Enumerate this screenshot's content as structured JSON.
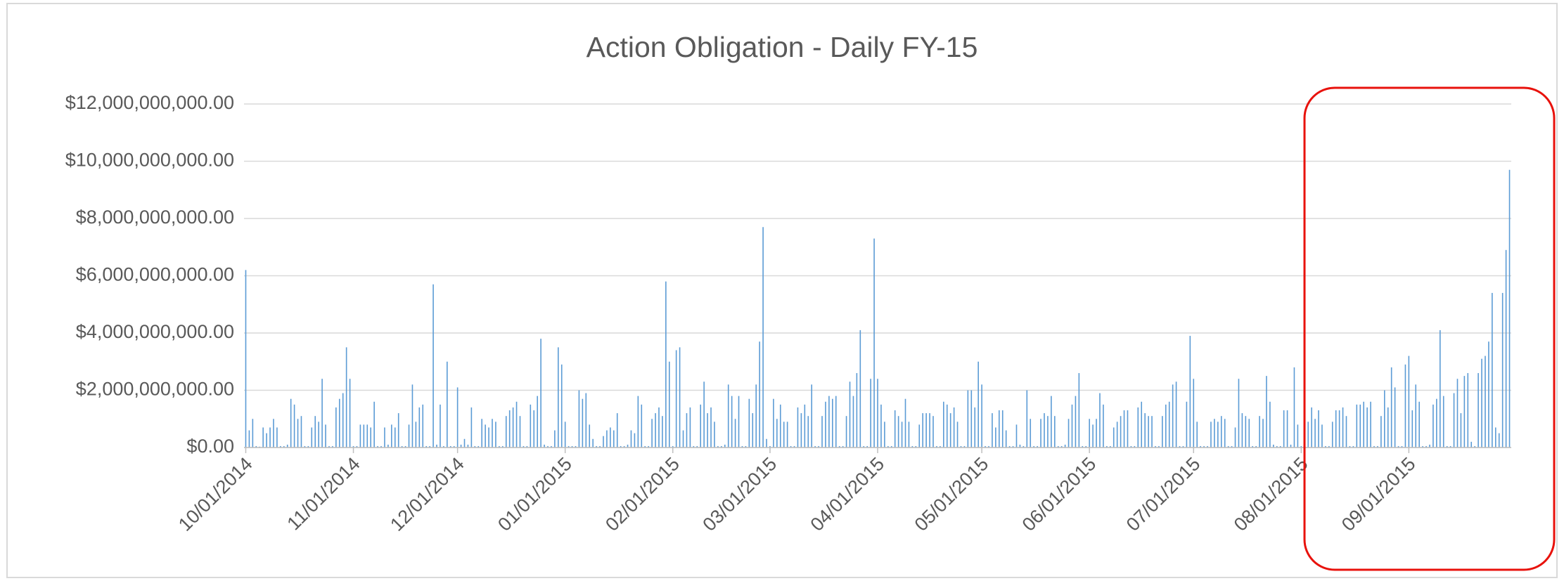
{
  "chart_data": {
    "type": "bar",
    "title": "Action Obligation - Daily FY-15",
    "color": "#5b9bd5",
    "grid": true,
    "categories": [
      "10/01/2014",
      null,
      null,
      null,
      null,
      null,
      null,
      null,
      null,
      null,
      null,
      null,
      null,
      null,
      null,
      null,
      null,
      null,
      null,
      null,
      null,
      null,
      null,
      null,
      null,
      null,
      null,
      null,
      null,
      null,
      null,
      "11/01/2014",
      null,
      null,
      null,
      null,
      null,
      null,
      null,
      null,
      null,
      null,
      null,
      null,
      null,
      null,
      null,
      null,
      null,
      null,
      null,
      null,
      null,
      null,
      null,
      null,
      null,
      null,
      null,
      null,
      null,
      "12/01/2014",
      null,
      null,
      null,
      null,
      null,
      null,
      null,
      null,
      null,
      null,
      null,
      null,
      null,
      null,
      null,
      null,
      null,
      null,
      null,
      null,
      null,
      null,
      null,
      null,
      null,
      null,
      null,
      null,
      null,
      null,
      "01/01/2015",
      null,
      null,
      null,
      null,
      null,
      null,
      null,
      null,
      null,
      null,
      null,
      null,
      null,
      null,
      null,
      null,
      null,
      null,
      null,
      null,
      null,
      null,
      null,
      null,
      null,
      null,
      null,
      null,
      null,
      null,
      "02/01/2015",
      null,
      null,
      null,
      null,
      null,
      null,
      null,
      null,
      null,
      null,
      null,
      null,
      null,
      null,
      null,
      null,
      null,
      null,
      null,
      null,
      null,
      null,
      null,
      null,
      null,
      null,
      null,
      "03/01/2015",
      null,
      null,
      null,
      null,
      null,
      null,
      null,
      null,
      null,
      null,
      null,
      null,
      null,
      null,
      null,
      null,
      null,
      null,
      null,
      null,
      null,
      null,
      null,
      null,
      null,
      null,
      null,
      null,
      null,
      null,
      "04/01/2015",
      null,
      null,
      null,
      null,
      null,
      null,
      null,
      null,
      null,
      null,
      null,
      null,
      null,
      null,
      null,
      null,
      null,
      null,
      null,
      null,
      null,
      null,
      null,
      null,
      null,
      null,
      null,
      null,
      null,
      "05/01/2015",
      null,
      null,
      null,
      null,
      null,
      null,
      null,
      null,
      null,
      null,
      null,
      null,
      null,
      null,
      null,
      null,
      null,
      null,
      null,
      null,
      null,
      null,
      null,
      null,
      null,
      null,
      null,
      null,
      null,
      null,
      "06/01/2015",
      null,
      null,
      null,
      null,
      null,
      null,
      null,
      null,
      null,
      null,
      null,
      null,
      null,
      null,
      null,
      null,
      null,
      null,
      null,
      null,
      null,
      null,
      null,
      null,
      null,
      null,
      null,
      null,
      null,
      "07/01/2015",
      null,
      null,
      null,
      null,
      null,
      null,
      null,
      null,
      null,
      null,
      null,
      null,
      null,
      null,
      null,
      null,
      null,
      null,
      null,
      null,
      null,
      null,
      null,
      null,
      null,
      null,
      null,
      null,
      null,
      null,
      "08/01/2015",
      null,
      null,
      null,
      null,
      null,
      null,
      null,
      null,
      null,
      null,
      null,
      null,
      null,
      null,
      null,
      null,
      null,
      null,
      null,
      null,
      null,
      null,
      null,
      null,
      null,
      null,
      null,
      null,
      null,
      null,
      "09/01/2015",
      null,
      null,
      null,
      null,
      null,
      null,
      null,
      null,
      null,
      null,
      null,
      null,
      null,
      null,
      null,
      null,
      null,
      null,
      null,
      null,
      null,
      null,
      null,
      null,
      null,
      null,
      null,
      null,
      null
    ],
    "values": [
      6200000000.0,
      600000000.0,
      1000000000.0,
      50000000.0,
      30000000.0,
      700000000.0,
      500000000.0,
      700000000.0,
      1000000000.0,
      700000000.0,
      50000000.0,
      50000000.0,
      100000000.0,
      1700000000.0,
      1500000000.0,
      1000000000.0,
      1100000000.0,
      50000000.0,
      50000000.0,
      700000000.0,
      1100000000.0,
      900000000.0,
      2400000000.0,
      800000000.0,
      50000000.0,
      50000000.0,
      1400000000.0,
      1700000000.0,
      1900000000.0,
      3500000000.0,
      2400000000.0,
      50000000.0,
      50000000.0,
      800000000.0,
      800000000.0,
      800000000.0,
      700000000.0,
      1600000000.0,
      50000000.0,
      50000000.0,
      700000000.0,
      100000000.0,
      800000000.0,
      700000000.0,
      1200000000.0,
      50000000.0,
      50000000.0,
      800000000.0,
      2200000000.0,
      900000000.0,
      1400000000.0,
      1500000000.0,
      50000000.0,
      50000000.0,
      5700000000.0,
      100000000.0,
      1500000000.0,
      50000000.0,
      3000000000.0,
      50000000.0,
      50000000.0,
      2100000000.0,
      100000000.0,
      300000000.0,
      100000000.0,
      1400000000.0,
      50000000.0,
      50000000.0,
      1000000000.0,
      800000000.0,
      700000000.0,
      1000000000.0,
      900000000.0,
      50000000.0,
      50000000.0,
      1100000000.0,
      1300000000.0,
      1400000000.0,
      1600000000.0,
      1100000000.0,
      50000000.0,
      50000000.0,
      1500000000.0,
      1300000000.0,
      1800000000.0,
      3800000000.0,
      100000000.0,
      50000000.0,
      50000000.0,
      600000000.0,
      3500000000.0,
      2900000000.0,
      900000000.0,
      50000000.0,
      50000000.0,
      50000000.0,
      2000000000.0,
      1700000000.0,
      1900000000.0,
      800000000.0,
      300000000.0,
      50000000.0,
      50000000.0,
      400000000.0,
      600000000.0,
      700000000.0,
      600000000.0,
      1200000000.0,
      50000000.0,
      50000000.0,
      100000000.0,
      600000000.0,
      500000000.0,
      1800000000.0,
      1500000000.0,
      50000000.0,
      50000000.0,
      1000000000.0,
      1200000000.0,
      1400000000.0,
      1100000000.0,
      5800000000.0,
      3000000000.0,
      50000000.0,
      3400000000.0,
      3500000000.0,
      600000000.0,
      1200000000.0,
      1400000000.0,
      50000000.0,
      50000000.0,
      1500000000.0,
      2300000000.0,
      1200000000.0,
      1400000000.0,
      900000000.0,
      50000000.0,
      50000000.0,
      100000000.0,
      2200000000.0,
      1800000000.0,
      1000000000.0,
      1800000000.0,
      50000000.0,
      50000000.0,
      1700000000.0,
      1200000000.0,
      2200000000.0,
      3700000000.0,
      7700000000.0,
      300000000.0,
      50000000.0,
      1700000000.0,
      1000000000.0,
      1500000000.0,
      900000000.0,
      900000000.0,
      50000000.0,
      50000000.0,
      1400000000.0,
      1200000000.0,
      1500000000.0,
      1100000000.0,
      2200000000.0,
      50000000.0,
      50000000.0,
      1100000000.0,
      1600000000.0,
      1800000000.0,
      1700000000.0,
      1800000000.0,
      50000000.0,
      50000000.0,
      1100000000.0,
      2300000000.0,
      1800000000.0,
      2600000000.0,
      4100000000.0,
      50000000.0,
      50000000.0,
      2400000000.0,
      7300000000.0,
      2400000000.0,
      1500000000.0,
      900000000.0,
      50000000.0,
      50000000.0,
      1300000000.0,
      1100000000.0,
      900000000.0,
      1700000000.0,
      900000000.0,
      50000000.0,
      50000000.0,
      800000000.0,
      1200000000.0,
      1200000000.0,
      1200000000.0,
      1100000000.0,
      50000000.0,
      50000000.0,
      1600000000.0,
      1500000000.0,
      1200000000.0,
      1400000000.0,
      900000000.0,
      50000000.0,
      50000000.0,
      2000000000.0,
      2000000000.0,
      1400000000.0,
      3000000000.0,
      2200000000.0,
      50000000.0,
      50000000.0,
      1200000000.0,
      700000000.0,
      1300000000.0,
      1300000000.0,
      600000000.0,
      50000000.0,
      50000000.0,
      800000000.0,
      100000000.0,
      50000000.0,
      2000000000.0,
      1000000000.0,
      50000000.0,
      50000000.0,
      1000000000.0,
      1200000000.0,
      1100000000.0,
      1800000000.0,
      1100000000.0,
      50000000.0,
      50000000.0,
      100000000.0,
      1000000000.0,
      1500000000.0,
      1800000000.0,
      2600000000.0,
      50000000.0,
      50000000.0,
      1000000000.0,
      800000000.0,
      1000000000.0,
      1900000000.0,
      1500000000.0,
      50000000.0,
      50000000.0,
      700000000.0,
      900000000.0,
      1100000000.0,
      1300000000.0,
      1300000000.0,
      50000000.0,
      50000000.0,
      1400000000.0,
      1600000000.0,
      1200000000.0,
      1100000000.0,
      1100000000.0,
      50000000.0,
      50000000.0,
      1100000000.0,
      1500000000.0,
      1600000000.0,
      2200000000.0,
      2300000000.0,
      50000000.0,
      50000000.0,
      1600000000.0,
      3900000000.0,
      2400000000.0,
      900000000.0,
      50000000.0,
      50000000.0,
      50000000.0,
      900000000.0,
      1000000000.0,
      900000000.0,
      1100000000.0,
      1000000000.0,
      50000000.0,
      50000000.0,
      700000000.0,
      2400000000.0,
      1200000000.0,
      1100000000.0,
      1000000000.0,
      50000000.0,
      50000000.0,
      1100000000.0,
      1000000000.0,
      2500000000.0,
      1600000000.0,
      100000000.0,
      50000000.0,
      50000000.0,
      1300000000.0,
      1300000000.0,
      100000000.0,
      2800000000.0,
      800000000.0,
      50000000.0,
      50000000.0,
      900000000.0,
      1400000000.0,
      1000000000.0,
      1300000000.0,
      800000000.0,
      50000000.0,
      50000000.0,
      900000000.0,
      1300000000.0,
      1300000000.0,
      1400000000.0,
      1100000000.0,
      50000000.0,
      50000000.0,
      1500000000.0,
      1500000000.0,
      1600000000.0,
      1400000000.0,
      1600000000.0,
      50000000.0,
      50000000.0,
      1100000000.0,
      2000000000.0,
      1400000000.0,
      2800000000.0,
      2100000000.0,
      50000000.0,
      50000000.0,
      2900000000.0,
      3200000000.0,
      1300000000.0,
      2200000000.0,
      1600000000.0,
      50000000.0,
      50000000.0,
      100000000.0,
      1500000000.0,
      1700000000.0,
      4100000000.0,
      1800000000.0,
      50000000.0,
      50000000.0,
      1900000000.0,
      2400000000.0,
      1200000000.0,
      2500000000.0,
      2600000000.0,
      200000000.0,
      50000000.0,
      2600000000.0,
      3100000000.0,
      3200000000.0,
      3700000000.0,
      5400000000.0,
      700000000.0,
      500000000.0,
      5400000000.0,
      6900000000.0,
      9700000000.0
    ],
    "ylim": [
      0,
      12000000000
    ],
    "yticks": [
      {
        "value": 0,
        "label": "$0.00"
      },
      {
        "value": 2000000000,
        "label": "$2,000,000,000.00"
      },
      {
        "value": 4000000000,
        "label": "$4,000,000,000.00"
      },
      {
        "value": 6000000000,
        "label": "$6,000,000,000.00"
      },
      {
        "value": 8000000000,
        "label": "$8,000,000,000.00"
      },
      {
        "value": 10000000000,
        "label": "$10,000,000,000.00"
      },
      {
        "value": 12000000000,
        "label": "$12,000,000,000.00"
      }
    ]
  }
}
